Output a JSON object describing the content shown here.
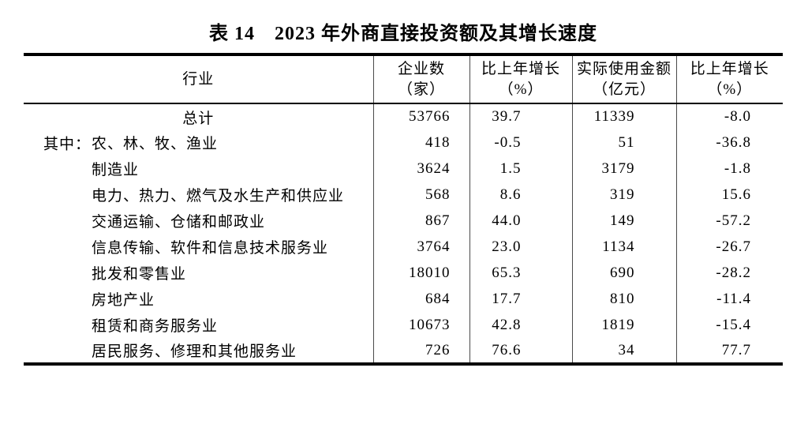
{
  "title": "表 14　2023 年外商直接投资额及其增长速度",
  "colors": {
    "text": "#000000",
    "background": "#ffffff",
    "rule": "#000000"
  },
  "table": {
    "columns": [
      {
        "label": "行业"
      },
      {
        "line1": "企业数",
        "line2": "（家）"
      },
      {
        "line1": "比上年增长",
        "line2": "（%）"
      },
      {
        "line1": "实际使用金额",
        "line2": "（亿元）"
      },
      {
        "line1": "比上年增长",
        "line2": "（%）"
      }
    ],
    "rows": [
      {
        "prefix": "",
        "industry": "总计",
        "enterprises": "53766",
        "enterprises_growth": "39.7",
        "amount": "11339",
        "amount_growth": "-8.0"
      },
      {
        "prefix": "其中：",
        "industry": "农、林、牧、渔业",
        "enterprises": "418",
        "enterprises_growth": "-0.5",
        "amount": "51",
        "amount_growth": "-36.8"
      },
      {
        "prefix": "",
        "industry": "制造业",
        "enterprises": "3624",
        "enterprises_growth": "1.5",
        "amount": "3179",
        "amount_growth": "-1.8"
      },
      {
        "prefix": "",
        "industry": "电力、热力、燃气及水生产和供应业",
        "enterprises": "568",
        "enterprises_growth": "8.6",
        "amount": "319",
        "amount_growth": "15.6"
      },
      {
        "prefix": "",
        "industry": "交通运输、仓储和邮政业",
        "enterprises": "867",
        "enterprises_growth": "44.0",
        "amount": "149",
        "amount_growth": "-57.2"
      },
      {
        "prefix": "",
        "industry": "信息传输、软件和信息技术服务业",
        "enterprises": "3764",
        "enterprises_growth": "23.0",
        "amount": "1134",
        "amount_growth": "-26.7"
      },
      {
        "prefix": "",
        "industry": "批发和零售业",
        "enterprises": "18010",
        "enterprises_growth": "65.3",
        "amount": "690",
        "amount_growth": "-28.2"
      },
      {
        "prefix": "",
        "industry": "房地产业",
        "enterprises": "684",
        "enterprises_growth": "17.7",
        "amount": "810",
        "amount_growth": "-11.4"
      },
      {
        "prefix": "",
        "industry": "租赁和商务服务业",
        "enterprises": "10673",
        "enterprises_growth": "42.8",
        "amount": "1819",
        "amount_growth": "-15.4"
      },
      {
        "prefix": "",
        "industry": "居民服务、修理和其他服务业",
        "enterprises": "726",
        "enterprises_growth": "76.6",
        "amount": "34",
        "amount_growth": "77.7"
      }
    ]
  }
}
